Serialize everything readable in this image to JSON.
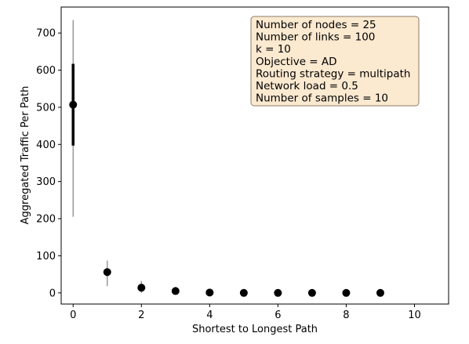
{
  "chart_data": {
    "type": "scatter",
    "xlabel": "Shortest to Longest Path",
    "ylabel": "Aggregated Traffic Per Path",
    "xlim": [
      -0.35,
      11
    ],
    "ylim": [
      -30,
      770
    ],
    "xticks": [
      0,
      2,
      4,
      6,
      8,
      10
    ],
    "yticks": [
      0,
      100,
      200,
      300,
      400,
      500,
      600,
      700
    ],
    "grid": false,
    "points": [
      {
        "x": 0,
        "y": 507,
        "whisker": [
          205,
          735
        ],
        "box": [
          397,
          617
        ]
      },
      {
        "x": 1,
        "y": 56,
        "whisker": [
          18,
          87
        ],
        "box": [
          47,
          63
        ]
      },
      {
        "x": 2,
        "y": 14,
        "whisker": [
          0,
          32
        ],
        "box": [
          8,
          18
        ]
      },
      {
        "x": 3,
        "y": 5,
        "whisker": [
          0,
          16
        ],
        "box": [
          2,
          8
        ]
      },
      {
        "x": 4,
        "y": 1,
        "whisker": [
          0,
          3
        ],
        "box": [
          0,
          2
        ]
      },
      {
        "x": 5,
        "y": 0,
        "whisker": [
          0,
          1
        ],
        "box": [
          0,
          0
        ]
      },
      {
        "x": 6,
        "y": 0,
        "whisker": [
          0,
          1
        ],
        "box": [
          0,
          0
        ]
      },
      {
        "x": 7,
        "y": 0,
        "whisker": [
          0,
          1
        ],
        "box": [
          0,
          0
        ]
      },
      {
        "x": 8,
        "y": 0,
        "whisker": [
          0,
          1
        ],
        "box": [
          0,
          0
        ]
      },
      {
        "x": 9,
        "y": 0,
        "whisker": [
          0,
          1
        ],
        "box": [
          0,
          0
        ]
      }
    ],
    "annotation": {
      "lines": [
        "Number of nodes = 25",
        "Number of links = 100",
        "k = 10",
        "Objective = AD",
        "Routing strategy = multipath",
        "Network load = 0.5",
        "Number of samples = 10"
      ],
      "placement": "top-right",
      "background": "#fbe9d0",
      "border": "#8c7d6a"
    },
    "colors": {
      "marker": "#000000",
      "whisker": "#808080",
      "box": "#000000"
    }
  }
}
